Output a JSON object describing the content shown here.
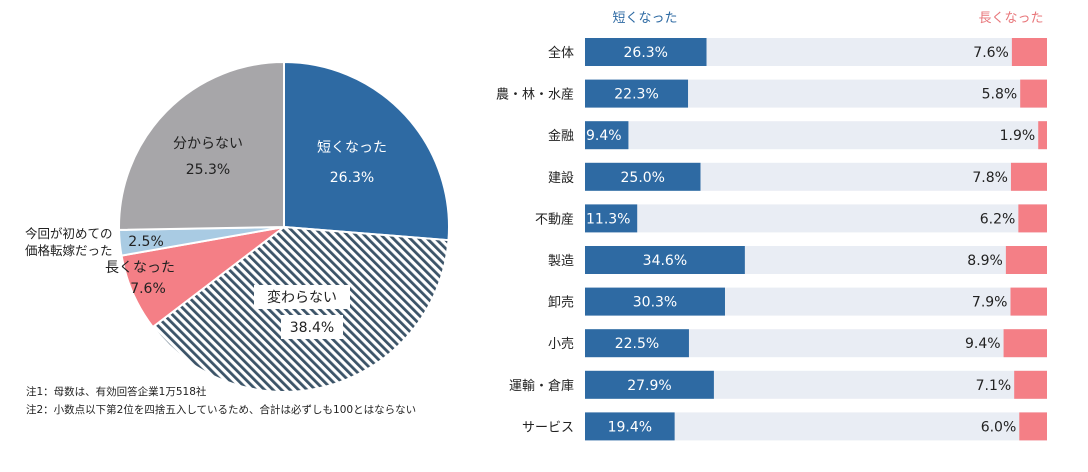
{
  "chart_data": [
    {
      "type": "pie",
      "slices": [
        {
          "label": "短くなった",
          "value": 26.3,
          "value_label": "26.3%",
          "color": "#2e6aa3"
        },
        {
          "label": "変わらない",
          "value": 38.4,
          "value_label": "38.4%",
          "color": "#ffffff",
          "pattern": "diagonal-stripes",
          "pattern_color": "#3c5468"
        },
        {
          "label": "長くなった",
          "value": 7.6,
          "value_label": "7.6%",
          "color": "#f47f86"
        },
        {
          "label": "今回が初めての価格転嫁だった",
          "label_lines": [
            "今回が初めての",
            "価格転嫁だった"
          ],
          "value": 2.5,
          "value_label": "2.5%",
          "color": "#a9cbe3"
        },
        {
          "label": "分からない",
          "value": 25.3,
          "value_label": "25.3%",
          "color": "#a7a6a9"
        }
      ],
      "start": "12 o'clock",
      "direction": "clockwise"
    },
    {
      "type": "bar",
      "orientation": "horizontal",
      "stacked": true,
      "legend": {
        "left": "短くなった",
        "right": "長くなった",
        "left_color": "#2e6aa3",
        "right_color": "#e8777b"
      },
      "categories": [
        "全体",
        "農・林・水産",
        "金融",
        "建設",
        "不動産",
        "製造",
        "卸売",
        "小売",
        "運輸・倉庫",
        "サービス"
      ],
      "series": [
        {
          "name": "短くなった",
          "color": "#2e6aa3",
          "values": [
            26.3,
            22.3,
            9.4,
            25.0,
            11.3,
            34.6,
            30.3,
            22.5,
            27.9,
            19.4
          ],
          "value_labels": [
            "26.3%",
            "22.3%",
            "9.4%",
            "25.0%",
            "11.3%",
            "34.6%",
            "30.3%",
            "22.5%",
            "27.9%",
            "19.4%"
          ]
        },
        {
          "name": "",
          "color": "#e9edf4",
          "values": [
            66.1,
            71.9,
            88.7,
            67.2,
            82.5,
            56.5,
            61.8,
            68.1,
            65.0,
            74.6
          ]
        },
        {
          "name": "長くなった",
          "color": "#f47f86",
          "values": [
            7.6,
            5.8,
            1.9,
            7.8,
            6.2,
            8.9,
            7.9,
            9.4,
            7.1,
            6.0
          ],
          "value_labels": [
            "7.6%",
            "5.8%",
            "1.9%",
            "7.8%",
            "6.2%",
            "8.9%",
            "7.9%",
            "9.4%",
            "7.1%",
            "6.0%"
          ]
        }
      ],
      "xlim": [
        0,
        100
      ]
    }
  ],
  "notes": [
    "注1：母数は、有効回答企業1万518社",
    "注2：小数点以下第2位を四捨五入しているため、合計は必ずしも100とはならない"
  ]
}
